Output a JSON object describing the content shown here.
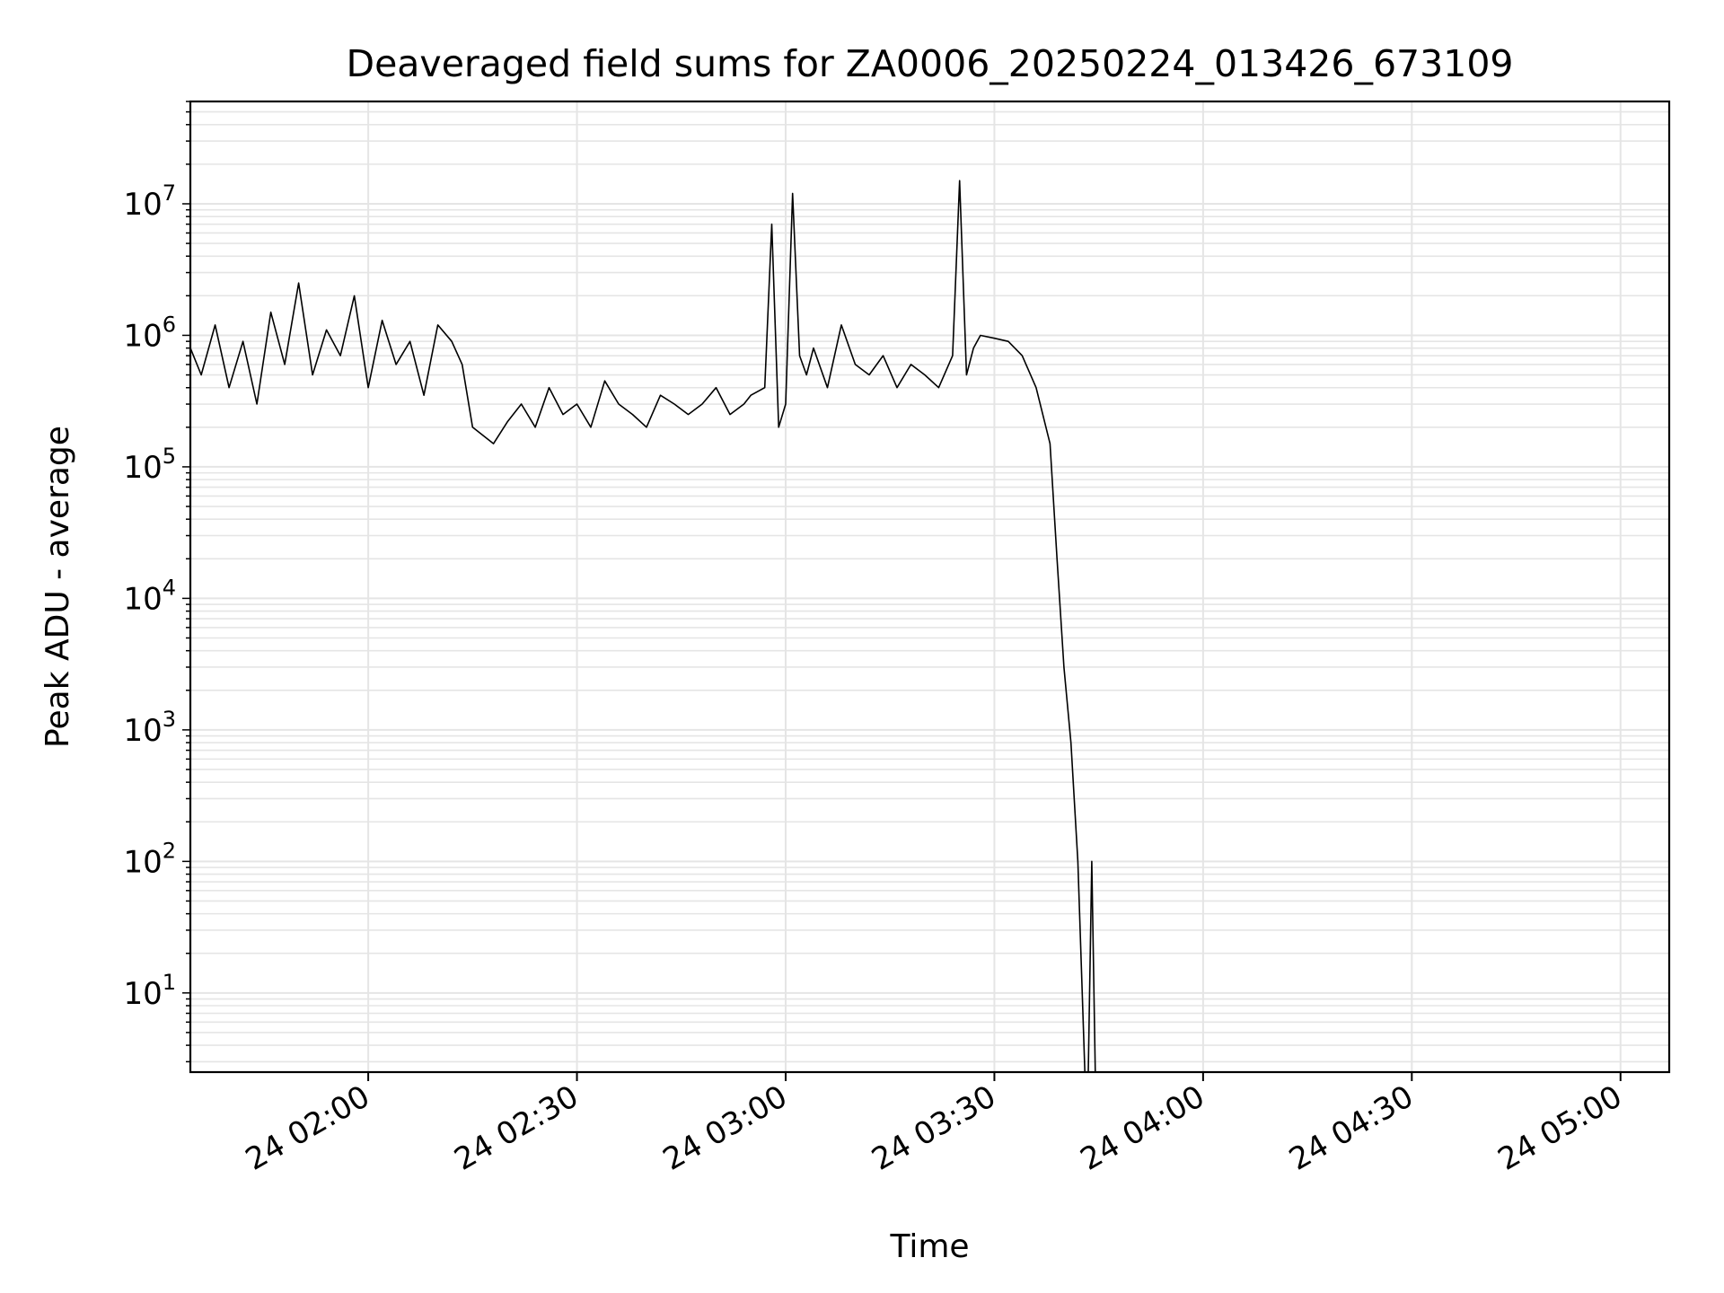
{
  "chart_data": {
    "type": "line",
    "title": "Deaveraged field sums for ZA0006_20250224_013426_673109",
    "xlabel": "Time",
    "ylabel": "Peak ADU - average",
    "y_scale": "log",
    "ylim": [
      2.5,
      60000000
    ],
    "xlim": [
      "2025-02-24 01:34:26",
      "2025-02-24 05:07:00"
    ],
    "grid": true,
    "line_color": "#000000",
    "grid_color": "#e5e5e5",
    "x_tick_labels": [
      "24 02:00",
      "24 02:30",
      "24 03:00",
      "24 03:30",
      "24 04:00",
      "24 04:30",
      "24 05:00"
    ],
    "x_tick_values": [
      "2025-02-24 02:00",
      "2025-02-24 02:30",
      "2025-02-24 03:00",
      "2025-02-24 03:30",
      "2025-02-24 04:00",
      "2025-02-24 04:30",
      "2025-02-24 05:00"
    ],
    "y_tick_values": [
      10,
      100,
      1000,
      10000,
      100000,
      1000000,
      10000000
    ],
    "y_tick_labels": [
      {
        "base": "10",
        "exp": "1"
      },
      {
        "base": "10",
        "exp": "2"
      },
      {
        "base": "10",
        "exp": "3"
      },
      {
        "base": "10",
        "exp": "4"
      },
      {
        "base": "10",
        "exp": "5"
      },
      {
        "base": "10",
        "exp": "6"
      },
      {
        "base": "10",
        "exp": "7"
      }
    ],
    "series": [
      {
        "x": [
          "2025-02-24 01:34:26",
          "2025-02-24 01:36:00",
          "2025-02-24 01:38:00",
          "2025-02-24 01:40:00",
          "2025-02-24 01:42:00",
          "2025-02-24 01:44:00",
          "2025-02-24 01:46:00",
          "2025-02-24 01:48:00",
          "2025-02-24 01:50:00",
          "2025-02-24 01:52:00",
          "2025-02-24 01:54:00",
          "2025-02-24 01:56:00",
          "2025-02-24 01:58:00",
          "2025-02-24 02:00:00",
          "2025-02-24 02:02:00",
          "2025-02-24 02:04:00",
          "2025-02-24 02:06:00",
          "2025-02-24 02:08:00",
          "2025-02-24 02:10:00",
          "2025-02-24 02:12:00",
          "2025-02-24 02:13:30",
          "2025-02-24 02:15:00",
          "2025-02-24 02:18:00",
          "2025-02-24 02:20:00",
          "2025-02-24 02:22:00",
          "2025-02-24 02:24:00",
          "2025-02-24 02:26:00",
          "2025-02-24 02:28:00",
          "2025-02-24 02:30:00",
          "2025-02-24 02:32:00",
          "2025-02-24 02:34:00",
          "2025-02-24 02:36:00",
          "2025-02-24 02:38:00",
          "2025-02-24 02:40:00",
          "2025-02-24 02:42:00",
          "2025-02-24 02:44:00",
          "2025-02-24 02:46:00",
          "2025-02-24 02:48:00",
          "2025-02-24 02:50:00",
          "2025-02-24 02:52:00",
          "2025-02-24 02:54:00",
          "2025-02-24 02:55:00",
          "2025-02-24 02:57:00",
          "2025-02-24 02:58:00",
          "2025-02-24 02:59:00",
          "2025-02-24 03:00:00",
          "2025-02-24 03:01:00",
          "2025-02-24 03:02:00",
          "2025-02-24 03:03:00",
          "2025-02-24 03:04:00",
          "2025-02-24 03:06:00",
          "2025-02-24 03:08:00",
          "2025-02-24 03:10:00",
          "2025-02-24 03:12:00",
          "2025-02-24 03:14:00",
          "2025-02-24 03:16:00",
          "2025-02-24 03:18:00",
          "2025-02-24 03:20:00",
          "2025-02-24 03:22:00",
          "2025-02-24 03:24:00",
          "2025-02-24 03:25:00",
          "2025-02-24 03:26:00",
          "2025-02-24 03:27:00",
          "2025-02-24 03:28:00",
          "2025-02-24 03:30:00",
          "2025-02-24 03:32:00",
          "2025-02-24 03:34:00",
          "2025-02-24 03:36:00",
          "2025-02-24 03:38:00",
          "2025-02-24 03:39:00",
          "2025-02-24 03:40:00",
          "2025-02-24 03:41:00",
          "2025-02-24 03:42:00",
          "2025-02-24 03:43:00",
          "2025-02-24 03:43:30",
          "2025-02-24 03:44:00",
          "2025-02-24 03:44:30"
        ],
        "y": [
          800000,
          500000,
          1200000,
          400000,
          900000,
          300000,
          1500000,
          600000,
          2500000,
          500000,
          1100000,
          700000,
          2000000,
          400000,
          1300000,
          600000,
          900000,
          350000,
          1200000,
          900000,
          600000,
          200000,
          150000,
          220000,
          300000,
          200000,
          400000,
          250000,
          300000,
          200000,
          450000,
          300000,
          250000,
          200000,
          350000,
          300000,
          250000,
          300000,
          400000,
          250000,
          300000,
          350000,
          400000,
          7000000,
          200000,
          300000,
          12000000,
          700000,
          500000,
          800000,
          400000,
          1200000,
          600000,
          500000,
          700000,
          400000,
          600000,
          500000,
          400000,
          700000,
          15000000,
          500000,
          800000,
          1000000,
          950000,
          900000,
          700000,
          400000,
          150000,
          20000,
          3000,
          800,
          100,
          2.5,
          2.5,
          100,
          2.5
        ]
      }
    ]
  }
}
